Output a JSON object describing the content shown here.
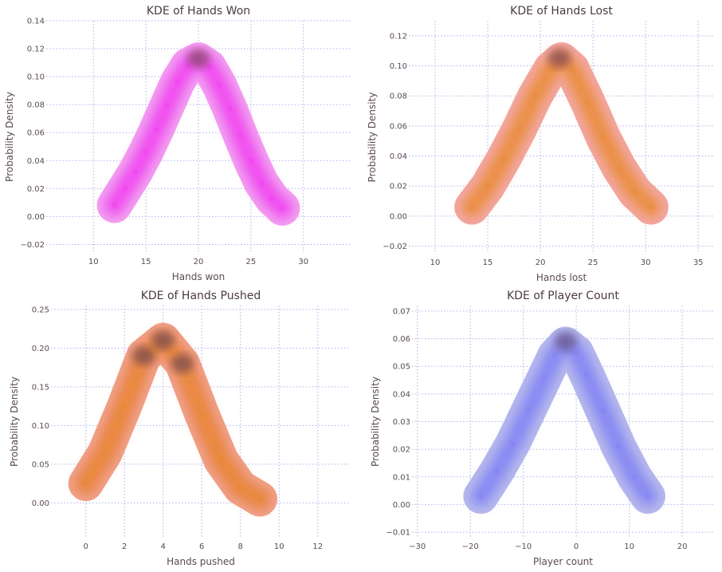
{
  "chart_data": [
    {
      "type": "kde2d",
      "title": "KDE of Hands Won",
      "xlabel": "Hands won",
      "ylabel": "Probability Density",
      "xlim": [
        5.5,
        34.5
      ],
      "ylim": [
        -0.026,
        0.14
      ],
      "xticks": [
        10,
        15,
        20,
        25,
        30
      ],
      "yticks": [
        -0.02,
        0.0,
        0.02,
        0.04,
        0.06,
        0.08,
        0.1,
        0.12,
        0.14
      ],
      "ytick_decimals": 2,
      "grid": true,
      "colors": {
        "outer": "#f29ef0",
        "mid": "#ee6ef0",
        "core": "#f23ef0",
        "peak": "#8a4a6a"
      },
      "x": [
        12,
        13,
        14,
        15,
        16,
        17,
        18,
        19,
        20,
        21,
        22,
        23,
        24,
        25,
        26,
        27,
        28
      ],
      "y": [
        0.008,
        0.02,
        0.032,
        0.046,
        0.062,
        0.079,
        0.096,
        0.108,
        0.112,
        0.107,
        0.094,
        0.077,
        0.058,
        0.04,
        0.024,
        0.013,
        0.006
      ],
      "density_peak": {
        "x": 20,
        "y": 0.113
      }
    },
    {
      "type": "kde2d",
      "title": "KDE of Hands Lost",
      "xlabel": "Hands lost",
      "ylabel": "Probability Density",
      "xlim": [
        7.5,
        36.5
      ],
      "ylim": [
        -0.025,
        0.13
      ],
      "xticks": [
        10,
        15,
        20,
        25,
        30,
        35
      ],
      "yticks": [
        -0.02,
        0.0,
        0.02,
        0.04,
        0.06,
        0.08,
        0.1,
        0.12
      ],
      "ytick_decimals": 2,
      "grid": true,
      "colors": {
        "outer": "#f2a6a2",
        "mid": "#ee9a6a",
        "core": "#e88a38",
        "peak": "#8a4a55"
      },
      "x": [
        13.5,
        15,
        16.5,
        18,
        19.5,
        21,
        22,
        23,
        24.5,
        26,
        27.5,
        29,
        30.5
      ],
      "y": [
        0.006,
        0.02,
        0.038,
        0.058,
        0.08,
        0.098,
        0.104,
        0.098,
        0.076,
        0.052,
        0.032,
        0.016,
        0.006
      ],
      "density_peak": {
        "x": 21.8,
        "y": 0.105
      }
    },
    {
      "type": "kde2d",
      "title": "KDE of Hands Pushed",
      "xlabel": "Hands pushed",
      "ylabel": "Probability Density",
      "xlim": [
        -1.8,
        13.7
      ],
      "ylim": [
        -0.045,
        0.255
      ],
      "xticks": [
        0,
        2,
        4,
        6,
        8,
        10,
        12
      ],
      "yticks": [
        0.0,
        0.05,
        0.1,
        0.15,
        0.2,
        0.25
      ],
      "ytick_decimals": 2,
      "grid": true,
      "colors": {
        "outer": "#f0a088",
        "mid": "#ea8a5c",
        "core": "#e8882e",
        "peak": "#7a4a50"
      },
      "x": [
        0,
        1,
        2,
        3,
        4,
        5,
        6,
        7,
        8,
        9
      ],
      "y": [
        0.025,
        0.065,
        0.125,
        0.19,
        0.21,
        0.18,
        0.115,
        0.055,
        0.02,
        0.005
      ],
      "density_peaks": [
        {
          "x": 3,
          "y": 0.19
        },
        {
          "x": 4,
          "y": 0.21
        },
        {
          "x": 5,
          "y": 0.18
        }
      ]
    },
    {
      "type": "kde2d",
      "title": "KDE of Player Count",
      "xlabel": "Player count",
      "ylabel": "Probability Density",
      "xlim": [
        -31,
        26
      ],
      "ylim": [
        -0.012,
        0.072
      ],
      "xticks": [
        -30,
        -20,
        -10,
        0,
        10,
        20
      ],
      "yticks": [
        -0.01,
        0.0,
        0.01,
        0.02,
        0.03,
        0.04,
        0.05,
        0.06,
        0.07
      ],
      "ytick_decimals": 2,
      "grid": true,
      "colors": {
        "outer": "#b6b8ec",
        "mid": "#9c9ef0",
        "core": "#8080f4",
        "peak": "#6a5a8a"
      },
      "x": [
        -18,
        -15,
        -12,
        -9,
        -6,
        -4,
        -2,
        0,
        2,
        5,
        8,
        11,
        13.5
      ],
      "y": [
        0.003,
        0.012,
        0.022,
        0.034,
        0.046,
        0.054,
        0.058,
        0.055,
        0.047,
        0.034,
        0.021,
        0.01,
        0.003
      ],
      "density_peak": {
        "x": -2,
        "y": 0.059
      }
    }
  ]
}
